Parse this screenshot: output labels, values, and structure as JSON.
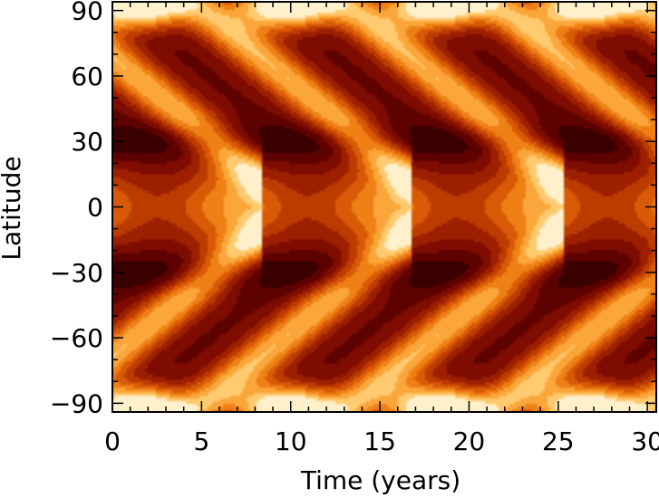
{
  "chart_data": {
    "type": "heatmap",
    "title": "",
    "xlabel": "Time (years)",
    "ylabel": "Latitude",
    "xlim": [
      0,
      30.5
    ],
    "ylim": [
      -94,
      94
    ],
    "xticks": [
      0,
      5,
      10,
      15,
      20,
      25,
      30
    ],
    "yticks": [
      -90,
      -60,
      -30,
      0,
      30,
      60,
      90
    ],
    "xtick_labels": [
      "0",
      "5",
      "10",
      "15",
      "20",
      "25",
      "30"
    ],
    "ytick_labels": [
      "−90",
      "−60",
      "−30",
      "0",
      "30",
      "60",
      "90"
    ],
    "colormap": "red-temperature (dark red to pale yellow)",
    "colors": [
      "#3a0000",
      "#5e0200",
      "#7e0c00",
      "#9c2000",
      "#bc3c00",
      "#d95a06",
      "#ee8016",
      "#fba63a",
      "#ffca70",
      "#fff0cc"
    ],
    "cycle_period_years": 8.4,
    "band_peak_times_years": [
      1.3,
      9.7,
      18.1,
      26.5
    ],
    "polar_peak_latitudes": [
      -90,
      90
    ],
    "equatorial_branch": "bands drift from about ±65 deg toward ±10 deg over each cycle",
    "grid": false,
    "legend": "none"
  }
}
